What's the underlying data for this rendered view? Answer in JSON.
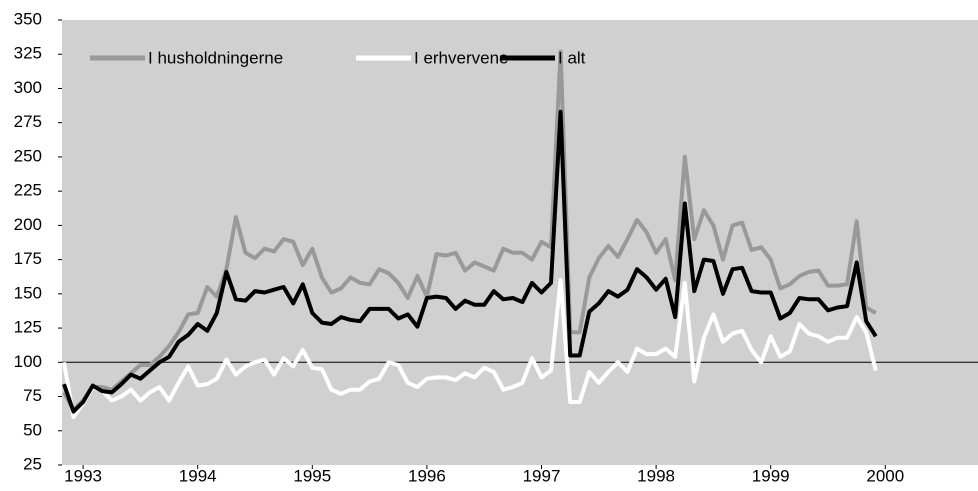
{
  "chart_data": {
    "type": "line",
    "categories": [
      null,
      null,
      "1993",
      null,
      null,
      null,
      null,
      null,
      null,
      null,
      null,
      null,
      null,
      null,
      "1994",
      null,
      null,
      null,
      null,
      null,
      null,
      null,
      null,
      null,
      null,
      null,
      "1995",
      null,
      null,
      null,
      null,
      null,
      null,
      null,
      null,
      null,
      null,
      null,
      "1996",
      null,
      null,
      null,
      null,
      null,
      null,
      null,
      null,
      null,
      null,
      null,
      "1997",
      null,
      null,
      null,
      null,
      null,
      null,
      null,
      null,
      null,
      null,
      null,
      "1998",
      null,
      null,
      null,
      null,
      null,
      null,
      null,
      null,
      null,
      null,
      null,
      "1999",
      null,
      null,
      null,
      null,
      null,
      null,
      null,
      null,
      null,
      null,
      null,
      "2000"
    ],
    "series": [
      {
        "name": "I husholdningerne",
        "color": "#999999",
        "values": [
          78,
          65,
          72,
          82,
          82,
          80,
          86,
          92,
          98,
          98,
          104,
          112,
          122,
          135,
          136,
          155,
          148,
          168,
          206,
          180,
          176,
          183,
          181,
          190,
          188,
          171,
          183,
          162,
          151,
          154,
          162,
          158,
          157,
          168,
          165,
          158,
          147,
          163,
          148,
          179,
          178,
          180,
          167,
          173,
          170,
          167,
          183,
          180,
          180,
          175,
          188,
          184,
          327,
          122,
          122,
          162,
          176,
          185,
          177,
          190,
          204,
          195,
          180,
          190,
          160,
          250,
          190,
          211,
          200,
          175,
          200,
          202,
          182,
          184,
          175,
          154,
          157,
          163,
          166,
          167,
          156,
          156,
          157,
          203,
          140,
          136,
          null
        ]
      },
      {
        "name": "I erhvervene",
        "color": "#ffffff",
        "values": [
          100,
          60,
          70,
          82,
          79,
          72,
          75,
          80,
          72,
          78,
          82,
          72,
          85,
          97,
          83,
          84,
          88,
          102,
          91,
          97,
          100,
          102,
          91,
          103,
          97,
          109,
          96,
          95,
          80,
          77,
          80,
          80,
          86,
          88,
          100,
          98,
          85,
          82,
          88,
          89,
          89,
          87,
          92,
          89,
          96,
          93,
          80,
          82,
          85,
          103,
          89,
          94,
          160,
          71,
          71,
          93,
          85,
          93,
          100,
          93,
          110,
          106,
          106,
          110,
          104,
          158,
          86,
          118,
          135,
          115,
          121,
          123,
          109,
          100,
          119,
          104,
          108,
          128,
          121,
          119,
          115,
          118,
          118,
          133,
          122,
          94,
          null
        ]
      },
      {
        "name": "I alt",
        "color": "#000000",
        "values": [
          84,
          64,
          71,
          83,
          79,
          78,
          84,
          91,
          88,
          94,
          100,
          104,
          115,
          120,
          128,
          123,
          136,
          166,
          146,
          145,
          152,
          151,
          153,
          155,
          143,
          157,
          136,
          129,
          128,
          133,
          131,
          130,
          139,
          139,
          139,
          132,
          135,
          126,
          147,
          148,
          147,
          139,
          145,
          142,
          142,
          152,
          146,
          147,
          144,
          158,
          151,
          158,
          283,
          105,
          105,
          137,
          143,
          152,
          148,
          153,
          168,
          162,
          153,
          161,
          133,
          216,
          152,
          175,
          174,
          150,
          168,
          169,
          152,
          151,
          151,
          132,
          136,
          147,
          146,
          146,
          138,
          140,
          141,
          173,
          130,
          119,
          null
        ]
      }
    ],
    "ylim": [
      25,
      350
    ],
    "yticks": [
      25,
      50,
      75,
      100,
      125,
      150,
      175,
      200,
      225,
      250,
      275,
      300,
      325,
      350
    ],
    "hline": 100,
    "background": "#d0d0d0",
    "legend": "upper left",
    "grid": false
  }
}
